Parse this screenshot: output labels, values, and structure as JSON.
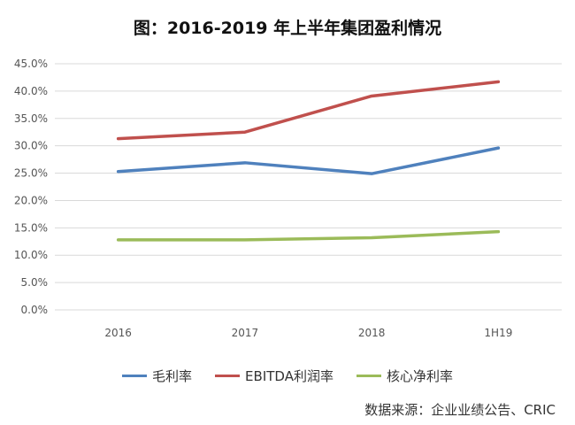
{
  "chart_data": {
    "type": "line",
    "title": "图：2016-2019 年上半年集团盈利情况",
    "categories": [
      "2016",
      "2017",
      "2018",
      "1H19"
    ],
    "series": [
      {
        "name": "毛利率",
        "color": "#4f81bd",
        "values": [
          25.3,
          26.9,
          24.9,
          29.6
        ]
      },
      {
        "name": "EBITDA利润率",
        "color": "#c0504d",
        "values": [
          31.3,
          32.5,
          39.1,
          41.7
        ]
      },
      {
        "name": "核心净利率",
        "color": "#9bbb59",
        "values": [
          12.8,
          12.8,
          13.2,
          14.3
        ]
      }
    ],
    "ylim": [
      0,
      45
    ],
    "yticks": [
      "0.0%",
      "5.0%",
      "10.0%",
      "15.0%",
      "20.0%",
      "25.0%",
      "30.0%",
      "35.0%",
      "40.0%",
      "45.0%"
    ],
    "grid": true,
    "legend": "bottom",
    "source": "数据来源：企业业绩公告、CRIC"
  }
}
